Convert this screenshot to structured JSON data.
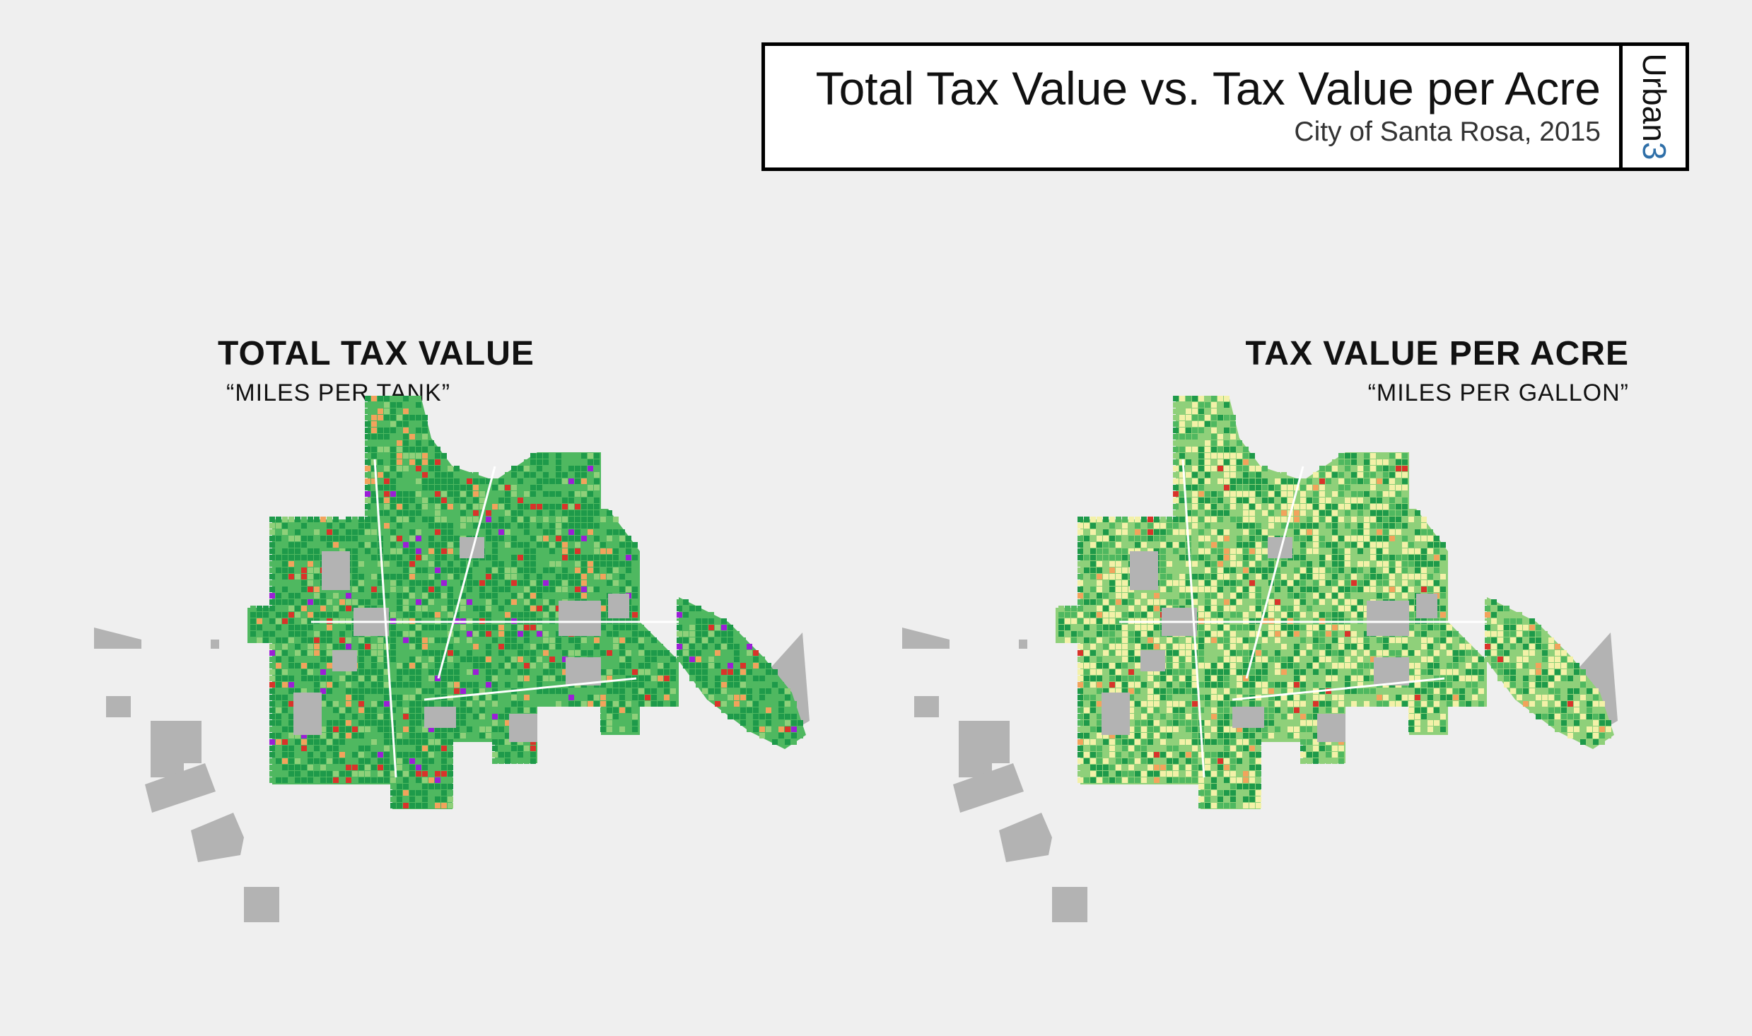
{
  "header": {
    "title": "Total Tax Value vs. Tax Value per Acre",
    "subtitle": "City of Santa Rosa, 2015",
    "brand_word": "Urban",
    "brand_number": "3"
  },
  "maps": [
    {
      "title": "TOTAL TAX VALUE",
      "subtitle": "“MILES PER TANK”"
    },
    {
      "title": "TAX VALUE PER ACRE",
      "subtitle": "“MILES PER GALLON”"
    }
  ],
  "colors": {
    "background": "#efefef",
    "outside_parcels": "#b3b3b3",
    "dark_green": "#1e9a4a",
    "mid_green": "#4fb860",
    "light_green": "#8fd07a",
    "pale_yellow": "#f3f1a8",
    "orange": "#f2a35c",
    "red": "#d9332a",
    "purple": "#9b1fd6",
    "brand_blue": "#2f6fa8"
  }
}
